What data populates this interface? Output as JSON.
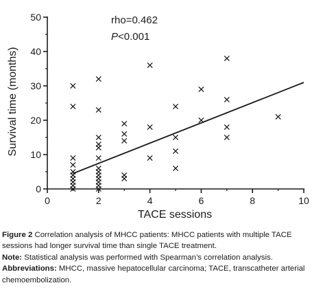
{
  "chart_data": {
    "type": "scatter",
    "xlabel": "TACE sessions",
    "ylabel": "Survival time (months)",
    "xlim": [
      0,
      10
    ],
    "ylim": [
      0,
      50
    ],
    "xticks": [
      "0",
      "2",
      "4",
      "6",
      "8",
      "10"
    ],
    "yticks": [
      "0",
      "10",
      "20",
      "30",
      "40",
      "50"
    ],
    "grid": false,
    "marker": "x",
    "annotation": {
      "rho": "rho=0.462",
      "p_italic": "P",
      "p_rest": "<0.001"
    },
    "points": [
      {
        "x": 1,
        "y": 30
      },
      {
        "x": 1,
        "y": 24
      },
      {
        "x": 1,
        "y": 9
      },
      {
        "x": 1,
        "y": 7
      },
      {
        "x": 1,
        "y": 5
      },
      {
        "x": 1,
        "y": 4
      },
      {
        "x": 1,
        "y": 3
      },
      {
        "x": 1,
        "y": 2
      },
      {
        "x": 1,
        "y": 1
      },
      {
        "x": 1,
        "y": 0
      },
      {
        "x": 2,
        "y": 32
      },
      {
        "x": 2,
        "y": 23
      },
      {
        "x": 2,
        "y": 15
      },
      {
        "x": 2,
        "y": 13
      },
      {
        "x": 2,
        "y": 12
      },
      {
        "x": 2,
        "y": 9
      },
      {
        "x": 2,
        "y": 6
      },
      {
        "x": 2,
        "y": 5
      },
      {
        "x": 2,
        "y": 4
      },
      {
        "x": 2,
        "y": 3
      },
      {
        "x": 2,
        "y": 2
      },
      {
        "x": 2,
        "y": 1
      },
      {
        "x": 2,
        "y": 0
      },
      {
        "x": 3,
        "y": 19
      },
      {
        "x": 3,
        "y": 16
      },
      {
        "x": 3,
        "y": 14
      },
      {
        "x": 3,
        "y": 4
      },
      {
        "x": 3,
        "y": 3
      },
      {
        "x": 4,
        "y": 36
      },
      {
        "x": 4,
        "y": 18
      },
      {
        "x": 4,
        "y": 9
      },
      {
        "x": 5,
        "y": 24
      },
      {
        "x": 5,
        "y": 15
      },
      {
        "x": 5,
        "y": 11
      },
      {
        "x": 5,
        "y": 6
      },
      {
        "x": 6,
        "y": 29
      },
      {
        "x": 6,
        "y": 20
      },
      {
        "x": 7,
        "y": 38
      },
      {
        "x": 7,
        "y": 26
      },
      {
        "x": 7,
        "y": 18
      },
      {
        "x": 7,
        "y": 15
      },
      {
        "x": 9,
        "y": 21
      }
    ],
    "trendline": {
      "x1": 1,
      "y1": 4.5,
      "x2": 10,
      "y2": 31
    }
  },
  "caption": {
    "figure_label": "Figure 2",
    "figure_text": "Correlation analysis of MHCC patients: MHCC patients with multiple TACE sessions had longer survival time than single TACE treatment.",
    "note_label": "Note:",
    "note_text": "Statistical analysis was performed with Spearman’s correlation analysis.",
    "abbrev_label": "Abbreviations:",
    "abbrev_text": "MHCC, massive hepatocellular carcinoma; TACE, transcatheter arterial chemoembolization."
  }
}
